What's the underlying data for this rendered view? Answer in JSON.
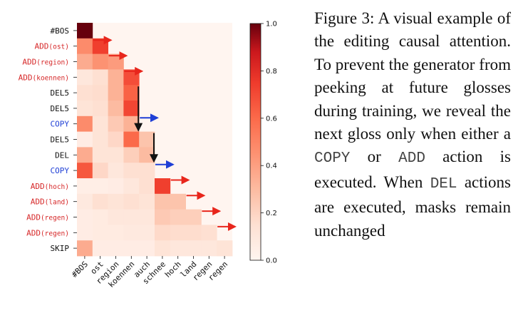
{
  "chart_data": {
    "type": "heatmap",
    "title": "",
    "rows": [
      {
        "op": "#BOS",
        "arg": "",
        "color": "#111111"
      },
      {
        "op": "ADD",
        "arg": "(ost)",
        "color": "#d62728"
      },
      {
        "op": "ADD",
        "arg": "(region)",
        "color": "#d62728"
      },
      {
        "op": "ADD",
        "arg": "(koennen)",
        "color": "#d62728"
      },
      {
        "op": "DEL5",
        "arg": "",
        "color": "#111111"
      },
      {
        "op": "DEL5",
        "arg": "",
        "color": "#111111"
      },
      {
        "op": "COPY",
        "arg": "",
        "color": "#1f3fd6"
      },
      {
        "op": "DEL5",
        "arg": "",
        "color": "#111111"
      },
      {
        "op": "DEL",
        "arg": "",
        "color": "#111111"
      },
      {
        "op": "COPY",
        "arg": "",
        "color": "#1f3fd6"
      },
      {
        "op": "ADD",
        "arg": "(hoch)",
        "color": "#d62728"
      },
      {
        "op": "ADD",
        "arg": "(land)",
        "color": "#d62728"
      },
      {
        "op": "ADD",
        "arg": "(regen)",
        "color": "#d62728"
      },
      {
        "op": "ADD",
        "arg": "(regen)",
        "color": "#d62728"
      },
      {
        "op": "SKIP",
        "arg": "",
        "color": "#111111"
      }
    ],
    "columns": [
      "#BOS",
      "ost",
      "region",
      "koennen",
      "auch",
      "schnee",
      "hoch",
      "land",
      "regen",
      "regen"
    ],
    "values": [
      [
        1.0,
        null,
        null,
        null,
        null,
        null,
        null,
        null,
        null,
        null
      ],
      [
        0.4,
        0.62,
        null,
        null,
        null,
        null,
        null,
        null,
        null,
        null
      ],
      [
        0.3,
        0.38,
        0.35,
        null,
        null,
        null,
        null,
        null,
        null,
        null
      ],
      [
        0.08,
        0.12,
        0.28,
        0.58,
        null,
        null,
        null,
        null,
        null,
        null
      ],
      [
        0.12,
        0.13,
        0.28,
        0.52,
        null,
        null,
        null,
        null,
        null,
        null
      ],
      [
        0.1,
        0.12,
        0.25,
        0.6,
        null,
        null,
        null,
        null,
        null,
        null
      ],
      [
        0.4,
        0.1,
        0.2,
        0.28,
        null,
        null,
        null,
        null,
        null,
        null
      ],
      [
        0.05,
        0.1,
        0.15,
        0.5,
        0.22,
        null,
        null,
        null,
        null,
        null
      ],
      [
        0.3,
        0.1,
        0.1,
        0.18,
        0.25,
        null,
        null,
        null,
        null,
        null
      ],
      [
        0.55,
        0.15,
        0.08,
        0.12,
        0.12,
        null,
        null,
        null,
        null,
        null
      ],
      [
        0.04,
        0.04,
        0.05,
        0.08,
        0.12,
        0.62,
        null,
        null,
        null,
        null
      ],
      [
        0.07,
        0.12,
        0.1,
        0.12,
        0.1,
        0.22,
        0.22,
        null,
        null,
        null
      ],
      [
        0.05,
        0.06,
        0.08,
        0.08,
        0.08,
        0.2,
        0.18,
        0.18,
        null,
        null
      ],
      [
        0.05,
        0.06,
        0.06,
        0.07,
        0.07,
        0.14,
        0.13,
        0.13,
        0.12,
        null
      ],
      [
        0.3,
        0.05,
        0.05,
        0.05,
        0.05,
        0.1,
        0.08,
        0.08,
        0.08,
        0.1
      ]
    ],
    "arrows": [
      {
        "type": "right",
        "row": 1,
        "col": 1,
        "color": "#e8261c"
      },
      {
        "type": "right",
        "row": 2,
        "col": 2,
        "color": "#e8261c"
      },
      {
        "type": "right",
        "row": 3,
        "col": 3,
        "color": "#e8261c"
      },
      {
        "type": "down",
        "col_edge": 4,
        "from_row": 4,
        "to_row": 7,
        "color": "#111111"
      },
      {
        "type": "right",
        "row": 6,
        "col": 4,
        "color": "#1f3fd6"
      },
      {
        "type": "down",
        "col_edge": 5,
        "from_row": 7,
        "to_row": 9,
        "color": "#111111"
      },
      {
        "type": "right",
        "row": 9,
        "col": 5,
        "color": "#1f3fd6"
      },
      {
        "type": "right",
        "row": 10,
        "col": 6,
        "color": "#e8261c"
      },
      {
        "type": "right",
        "row": 11,
        "col": 7,
        "color": "#e8261c"
      },
      {
        "type": "right",
        "row": 12,
        "col": 8,
        "color": "#e8261c"
      },
      {
        "type": "right",
        "row": 13,
        "col": 9,
        "color": "#e8261c"
      }
    ],
    "colorbar": {
      "range": [
        0.0,
        1.0
      ],
      "ticks": [
        "0.0",
        "0.2",
        "0.4",
        "0.6",
        "0.8",
        "1.0"
      ],
      "colormap": "Reds"
    },
    "grid": false
  },
  "caption": {
    "prefix": "Figure 3: A visual example of the editing causal attention. To prevent the generator from peeking at future glosses during training, we reveal the next gloss only when either a ",
    "code1": "COPY",
    "mid1": " or ",
    "code2": "ADD",
    "mid2": " action is executed. When ",
    "code3": "DEL",
    "suffix": " actions are executed, masks remain unchanged"
  }
}
